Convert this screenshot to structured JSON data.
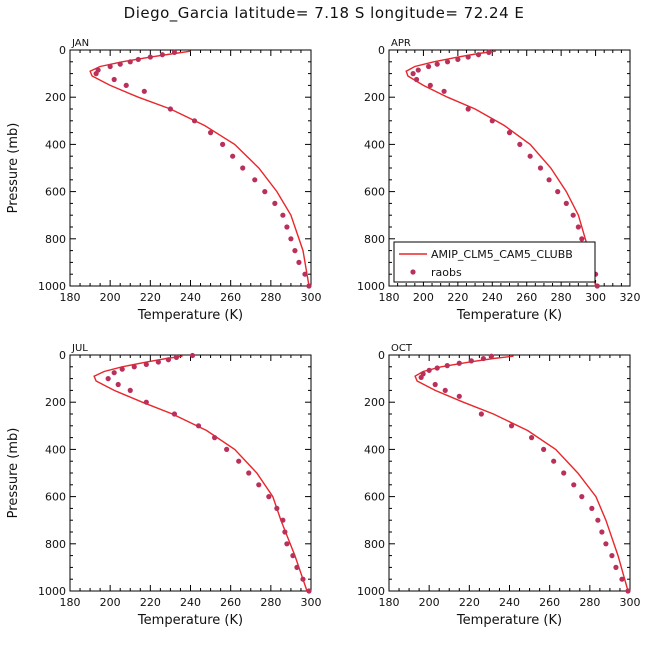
{
  "title": "Diego_Garcia   latitude= 7.18 S longitude= 72.24 E",
  "legend": {
    "model": "AMIP_CLM5_CAM5_CLUBB",
    "obs": "raobs"
  },
  "colors": {
    "model_line": "#e8262b",
    "obs_marker": "#b9305a"
  },
  "chart_data": [
    {
      "type": "line",
      "panel": "JAN",
      "xlabel": "Temperature (K)",
      "ylabel": "Pressure (mb)",
      "xlim": [
        180,
        300
      ],
      "ylim": [
        1000,
        0
      ],
      "xticks": [
        180,
        200,
        220,
        240,
        260,
        280,
        300
      ],
      "yticks": [
        0,
        200,
        400,
        600,
        800,
        1000
      ],
      "legend": false,
      "series": [
        {
          "name": "AMIP_CLM5_CAM5_CLUBB",
          "x": [
            240,
            232,
            220,
            206,
            195,
            190,
            191,
            200,
            214,
            230,
            247,
            262,
            274,
            283,
            290,
            296,
            299
          ],
          "y": [
            5,
            15,
            30,
            50,
            70,
            90,
            110,
            150,
            200,
            250,
            320,
            400,
            500,
            600,
            700,
            850,
            1000
          ]
        },
        {
          "name": "raobs",
          "x": [
            232,
            226,
            220,
            214,
            210,
            205,
            200,
            194,
            193,
            202,
            208,
            217,
            230,
            242,
            250,
            256,
            261,
            266,
            272,
            277,
            282,
            286,
            288,
            290,
            292,
            294,
            297,
            299
          ],
          "y": [
            10,
            20,
            30,
            40,
            50,
            60,
            70,
            85,
            100,
            125,
            150,
            175,
            250,
            300,
            350,
            400,
            450,
            500,
            550,
            600,
            650,
            700,
            750,
            800,
            850,
            900,
            950,
            1000
          ]
        }
      ]
    },
    {
      "type": "line",
      "panel": "APR",
      "xlabel": "Temperature (K)",
      "ylabel": "",
      "xlim": [
        180,
        320
      ],
      "ylim": [
        1000,
        0
      ],
      "xticks": [
        180,
        200,
        220,
        240,
        260,
        280,
        300,
        320
      ],
      "yticks": [
        0,
        200,
        400,
        600,
        800,
        1000
      ],
      "legend": true,
      "legend_position": "bottom-right",
      "series": [
        {
          "name": "AMIP_CLM5_CAM5_CLUBB",
          "x": [
            242,
            232,
            220,
            206,
            195,
            190,
            191,
            200,
            214,
            230,
            247,
            262,
            274,
            283,
            290,
            296,
            300
          ],
          "y": [
            5,
            15,
            30,
            50,
            70,
            90,
            110,
            150,
            200,
            250,
            320,
            400,
            500,
            600,
            700,
            850,
            1000
          ]
        },
        {
          "name": "raobs",
          "x": [
            238,
            232,
            226,
            220,
            214,
            208,
            203,
            197,
            194,
            196,
            204,
            212,
            226,
            240,
            250,
            256,
            262,
            268,
            273,
            278,
            283,
            287,
            290,
            292,
            295,
            298,
            300,
            301
          ],
          "y": [
            10,
            20,
            30,
            40,
            50,
            60,
            70,
            85,
            100,
            125,
            150,
            175,
            250,
            300,
            350,
            400,
            450,
            500,
            550,
            600,
            650,
            700,
            750,
            800,
            850,
            900,
            950,
            1000
          ]
        }
      ]
    },
    {
      "type": "line",
      "panel": "JUL",
      "xlabel": "Temperature (K)",
      "ylabel": "Pressure (mb)",
      "xlim": [
        180,
        300
      ],
      "ylim": [
        1000,
        0
      ],
      "xticks": [
        180,
        200,
        220,
        240,
        260,
        280,
        300
      ],
      "yticks": [
        0,
        200,
        400,
        600,
        800,
        1000
      ],
      "legend": false,
      "series": [
        {
          "name": "AMIP_CLM5_CAM5_CLUBB",
          "x": [
            236,
            228,
            218,
            206,
            197,
            192,
            193,
            202,
            216,
            231,
            248,
            262,
            273,
            281,
            285,
            292,
            298
          ],
          "y": [
            5,
            15,
            30,
            50,
            70,
            90,
            110,
            150,
            200,
            250,
            320,
            400,
            500,
            600,
            700,
            850,
            1000
          ]
        },
        {
          "name": "raobs",
          "x": [
            241,
            233,
            229,
            224,
            218,
            212,
            206,
            202,
            199,
            204,
            210,
            218,
            232,
            244,
            252,
            258,
            264,
            269,
            274,
            279,
            283,
            286,
            287,
            288,
            291,
            293,
            296,
            299
          ],
          "y": [
            2,
            10,
            20,
            30,
            40,
            50,
            60,
            75,
            100,
            125,
            150,
            200,
            250,
            300,
            350,
            400,
            450,
            500,
            550,
            600,
            650,
            700,
            750,
            800,
            850,
            900,
            950,
            1000
          ]
        }
      ]
    },
    {
      "type": "line",
      "panel": "OCT",
      "xlabel": "Temperature (K)",
      "ylabel": "",
      "xlim": [
        180,
        300
      ],
      "ylim": [
        1000,
        0
      ],
      "xticks": [
        180,
        200,
        220,
        240,
        260,
        280,
        300
      ],
      "yticks": [
        0,
        200,
        400,
        600,
        800,
        1000
      ],
      "legend": false,
      "series": [
        {
          "name": "AMIP_CLM5_CAM5_CLUBB",
          "x": [
            242,
            232,
            220,
            206,
            197,
            193,
            194,
            203,
            217,
            232,
            249,
            263,
            274,
            283,
            288,
            294,
            299
          ],
          "y": [
            5,
            15,
            30,
            50,
            70,
            90,
            110,
            150,
            200,
            250,
            320,
            400,
            500,
            600,
            700,
            850,
            1000
          ]
        },
        {
          "name": "raobs",
          "x": [
            231,
            227,
            221,
            215,
            209,
            204,
            200,
            197,
            196,
            203,
            208,
            215,
            226,
            241,
            251,
            257,
            262,
            267,
            272,
            276,
            281,
            284,
            286,
            288,
            291,
            293,
            296,
            299
          ],
          "y": [
            5,
            15,
            25,
            35,
            45,
            55,
            65,
            80,
            95,
            125,
            150,
            175,
            250,
            300,
            350,
            400,
            450,
            500,
            550,
            600,
            650,
            700,
            750,
            800,
            850,
            900,
            950,
            1000
          ]
        }
      ]
    }
  ]
}
